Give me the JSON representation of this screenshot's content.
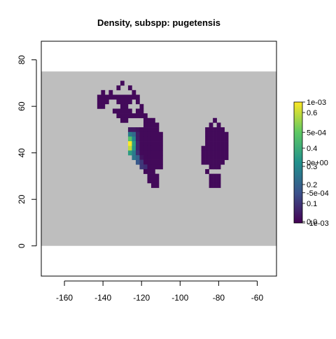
{
  "chart_data": {
    "type": "heatmap",
    "title": "Density, subspp: pugetensis",
    "xlabel": "",
    "ylabel": "",
    "xlim": [
      -172,
      -50
    ],
    "ylim": [
      -13,
      88
    ],
    "x_ticks": [
      -160,
      -140,
      -120,
      -100,
      -80,
      -60
    ],
    "x_tick_labels": [
      "-160",
      "-140",
      "-120",
      "-100",
      "-80",
      "-60"
    ],
    "y_ticks": [
      0,
      20,
      40,
      60,
      80
    ],
    "y_tick_labels": [
      "0",
      "20",
      "40",
      "60",
      "80"
    ],
    "background_extent": {
      "x": [
        -172,
        -50
      ],
      "y": [
        0,
        75
      ]
    },
    "background_color": "#bebebe",
    "cell_size_deg": 2,
    "colorscale": [
      "#440154",
      "#3b528b",
      "#21908c",
      "#5dc863",
      "#fde725"
    ],
    "colorbar_labels_a": [
      "1e-03",
      "5e-04",
      "0e+00",
      "-5e-04",
      "-1e-03"
    ],
    "colorbar_labels_b": [
      "0.6",
      "0.4",
      "0.3",
      "0.2",
      "0.1",
      "0.0"
    ],
    "cells": [
      {
        "x": -130,
        "y": 70,
        "v": 0.02
      },
      {
        "x": -132,
        "y": 68,
        "v": 0.02
      },
      {
        "x": -126,
        "y": 68,
        "v": 0.02
      },
      {
        "x": -140,
        "y": 66,
        "v": 0.02
      },
      {
        "x": -124,
        "y": 66,
        "v": 0.02
      },
      {
        "x": -136,
        "y": 66,
        "v": 0.02
      },
      {
        "x": -142,
        "y": 64,
        "v": 0.02
      },
      {
        "x": -140,
        "y": 64,
        "v": 0.02
      },
      {
        "x": -138,
        "y": 64,
        "v": 0.02
      },
      {
        "x": -136,
        "y": 64,
        "v": 0.02
      },
      {
        "x": -134,
        "y": 64,
        "v": 0.02
      },
      {
        "x": -132,
        "y": 64,
        "v": 0.02
      },
      {
        "x": -130,
        "y": 64,
        "v": 0.02
      },
      {
        "x": -128,
        "y": 64,
        "v": 0.02
      },
      {
        "x": -126,
        "y": 64,
        "v": 0.02
      },
      {
        "x": -124,
        "y": 64,
        "v": 0.02
      },
      {
        "x": -122,
        "y": 64,
        "v": 0.02
      },
      {
        "x": -142,
        "y": 62,
        "v": 0.02
      },
      {
        "x": -140,
        "y": 62,
        "v": 0.02
      },
      {
        "x": -138,
        "y": 62,
        "v": 0.02
      },
      {
        "x": -132,
        "y": 62,
        "v": 0.02
      },
      {
        "x": -130,
        "y": 62,
        "v": 0.02
      },
      {
        "x": -128,
        "y": 62,
        "v": 0.02
      },
      {
        "x": -126,
        "y": 62,
        "v": 0.02
      },
      {
        "x": -122,
        "y": 62,
        "v": 0.02
      },
      {
        "x": -142,
        "y": 60,
        "v": 0.02
      },
      {
        "x": -140,
        "y": 60,
        "v": 0.02
      },
      {
        "x": -130,
        "y": 60,
        "v": 0.02
      },
      {
        "x": -128,
        "y": 60,
        "v": 0.02
      },
      {
        "x": -120,
        "y": 60,
        "v": 0.02
      },
      {
        "x": -134,
        "y": 58,
        "v": 0.02
      },
      {
        "x": -132,
        "y": 58,
        "v": 0.02
      },
      {
        "x": -130,
        "y": 58,
        "v": 0.02
      },
      {
        "x": -128,
        "y": 58,
        "v": 0.02
      },
      {
        "x": -126,
        "y": 58,
        "v": 0.02
      },
      {
        "x": -122,
        "y": 58,
        "v": 0.02
      },
      {
        "x": -120,
        "y": 58,
        "v": 0.02
      },
      {
        "x": -132,
        "y": 56,
        "v": 0.02
      },
      {
        "x": -130,
        "y": 56,
        "v": 0.02
      },
      {
        "x": -128,
        "y": 56,
        "v": 0.02
      },
      {
        "x": -126,
        "y": 56,
        "v": 0.02
      },
      {
        "x": -124,
        "y": 56,
        "v": 0.02
      },
      {
        "x": -122,
        "y": 56,
        "v": 0.02
      },
      {
        "x": -120,
        "y": 56,
        "v": 0.02
      },
      {
        "x": -118,
        "y": 56,
        "v": 0.02
      },
      {
        "x": -130,
        "y": 54,
        "v": 0.02
      },
      {
        "x": -128,
        "y": 54,
        "v": 0.02
      },
      {
        "x": -118,
        "y": 54,
        "v": 0.02
      },
      {
        "x": -116,
        "y": 54,
        "v": 0.02
      },
      {
        "x": -114,
        "y": 54,
        "v": 0.02
      },
      {
        "x": -118,
        "y": 52,
        "v": 0.02
      },
      {
        "x": -116,
        "y": 52,
        "v": 0.02
      },
      {
        "x": -114,
        "y": 52,
        "v": 0.02
      },
      {
        "x": -112,
        "y": 52,
        "v": 0.02
      },
      {
        "x": -126,
        "y": 50,
        "v": 0.05
      },
      {
        "x": -124,
        "y": 50,
        "v": 0.05
      },
      {
        "x": -122,
        "y": 50,
        "v": 0.04
      },
      {
        "x": -120,
        "y": 50,
        "v": 0.02
      },
      {
        "x": -118,
        "y": 50,
        "v": 0.02
      },
      {
        "x": -116,
        "y": 50,
        "v": 0.02
      },
      {
        "x": -114,
        "y": 50,
        "v": 0.02
      },
      {
        "x": -112,
        "y": 50,
        "v": 0.02
      },
      {
        "x": -126,
        "y": 48,
        "v": 0.3
      },
      {
        "x": -124,
        "y": 48,
        "v": 0.25
      },
      {
        "x": -122,
        "y": 48,
        "v": 0.06
      },
      {
        "x": -120,
        "y": 48,
        "v": 0.02
      },
      {
        "x": -118,
        "y": 48,
        "v": 0.02
      },
      {
        "x": -116,
        "y": 48,
        "v": 0.02
      },
      {
        "x": -114,
        "y": 48,
        "v": 0.02
      },
      {
        "x": -112,
        "y": 48,
        "v": 0.02
      },
      {
        "x": -110,
        "y": 48,
        "v": 0.02
      },
      {
        "x": -126,
        "y": 46,
        "v": 0.52
      },
      {
        "x": -124,
        "y": 46,
        "v": 0.33
      },
      {
        "x": -122,
        "y": 46,
        "v": 0.06
      },
      {
        "x": -120,
        "y": 46,
        "v": 0.02
      },
      {
        "x": -118,
        "y": 46,
        "v": 0.02
      },
      {
        "x": -116,
        "y": 46,
        "v": 0.02
      },
      {
        "x": -114,
        "y": 46,
        "v": 0.02
      },
      {
        "x": -112,
        "y": 46,
        "v": 0.02
      },
      {
        "x": -110,
        "y": 46,
        "v": 0.02
      },
      {
        "x": -126,
        "y": 44,
        "v": 0.72
      },
      {
        "x": -124,
        "y": 44,
        "v": 0.4
      },
      {
        "x": -122,
        "y": 44,
        "v": 0.08
      },
      {
        "x": -120,
        "y": 44,
        "v": 0.02
      },
      {
        "x": -118,
        "y": 44,
        "v": 0.02
      },
      {
        "x": -116,
        "y": 44,
        "v": 0.02
      },
      {
        "x": -114,
        "y": 44,
        "v": 0.02
      },
      {
        "x": -112,
        "y": 44,
        "v": 0.02
      },
      {
        "x": -110,
        "y": 44,
        "v": 0.02
      },
      {
        "x": -126,
        "y": 42,
        "v": 0.65
      },
      {
        "x": -124,
        "y": 42,
        "v": 0.38
      },
      {
        "x": -122,
        "y": 42,
        "v": 0.08
      },
      {
        "x": -120,
        "y": 42,
        "v": 0.02
      },
      {
        "x": -118,
        "y": 42,
        "v": 0.02
      },
      {
        "x": -116,
        "y": 42,
        "v": 0.02
      },
      {
        "x": -114,
        "y": 42,
        "v": 0.02
      },
      {
        "x": -112,
        "y": 42,
        "v": 0.02
      },
      {
        "x": -110,
        "y": 42,
        "v": 0.02
      },
      {
        "x": -126,
        "y": 40,
        "v": 0.4
      },
      {
        "x": -124,
        "y": 40,
        "v": 0.3
      },
      {
        "x": -122,
        "y": 40,
        "v": 0.1
      },
      {
        "x": -120,
        "y": 40,
        "v": 0.02
      },
      {
        "x": -118,
        "y": 40,
        "v": 0.02
      },
      {
        "x": -116,
        "y": 40,
        "v": 0.02
      },
      {
        "x": -114,
        "y": 40,
        "v": 0.02
      },
      {
        "x": -112,
        "y": 40,
        "v": 0.02
      },
      {
        "x": -110,
        "y": 40,
        "v": 0.02
      },
      {
        "x": -124,
        "y": 38,
        "v": 0.28
      },
      {
        "x": -122,
        "y": 38,
        "v": 0.22
      },
      {
        "x": -120,
        "y": 38,
        "v": 0.04
      },
      {
        "x": -118,
        "y": 38,
        "v": 0.02
      },
      {
        "x": -116,
        "y": 38,
        "v": 0.02
      },
      {
        "x": -114,
        "y": 38,
        "v": 0.02
      },
      {
        "x": -112,
        "y": 38,
        "v": 0.02
      },
      {
        "x": -110,
        "y": 38,
        "v": 0.02
      },
      {
        "x": -122,
        "y": 36,
        "v": 0.2
      },
      {
        "x": -120,
        "y": 36,
        "v": 0.12
      },
      {
        "x": -118,
        "y": 36,
        "v": 0.02
      },
      {
        "x": -116,
        "y": 36,
        "v": 0.02
      },
      {
        "x": -114,
        "y": 36,
        "v": 0.02
      },
      {
        "x": -112,
        "y": 36,
        "v": 0.02
      },
      {
        "x": -110,
        "y": 36,
        "v": 0.02
      },
      {
        "x": -120,
        "y": 34,
        "v": 0.12
      },
      {
        "x": -118,
        "y": 34,
        "v": 0.1
      },
      {
        "x": -116,
        "y": 34,
        "v": 0.02
      },
      {
        "x": -114,
        "y": 34,
        "v": 0.02
      },
      {
        "x": -112,
        "y": 34,
        "v": 0.02
      },
      {
        "x": -110,
        "y": 34,
        "v": 0.02
      },
      {
        "x": -118,
        "y": 32,
        "v": 0.02
      },
      {
        "x": -116,
        "y": 32,
        "v": 0.02
      },
      {
        "x": -114,
        "y": 32,
        "v": 0.02
      },
      {
        "x": -116,
        "y": 30,
        "v": 0.02
      },
      {
        "x": -114,
        "y": 30,
        "v": 0.02
      },
      {
        "x": -112,
        "y": 30,
        "v": 0.02
      },
      {
        "x": -116,
        "y": 28,
        "v": 0.02
      },
      {
        "x": -114,
        "y": 28,
        "v": 0.02
      },
      {
        "x": -112,
        "y": 28,
        "v": 0.02
      },
      {
        "x": -114,
        "y": 26,
        "v": 0.02
      },
      {
        "x": -112,
        "y": 26,
        "v": 0.02
      },
      {
        "x": -82,
        "y": 54,
        "v": 0.02
      },
      {
        "x": -84,
        "y": 52,
        "v": 0.02
      },
      {
        "x": -80,
        "y": 52,
        "v": 0.02
      },
      {
        "x": -86,
        "y": 50,
        "v": 0.02
      },
      {
        "x": -84,
        "y": 50,
        "v": 0.02
      },
      {
        "x": -82,
        "y": 50,
        "v": 0.02
      },
      {
        "x": -80,
        "y": 50,
        "v": 0.02
      },
      {
        "x": -78,
        "y": 50,
        "v": 0.02
      },
      {
        "x": -86,
        "y": 48,
        "v": 0.02
      },
      {
        "x": -84,
        "y": 48,
        "v": 0.02
      },
      {
        "x": -82,
        "y": 48,
        "v": 0.02
      },
      {
        "x": -80,
        "y": 48,
        "v": 0.02
      },
      {
        "x": -78,
        "y": 48,
        "v": 0.02
      },
      {
        "x": -76,
        "y": 48,
        "v": 0.02
      },
      {
        "x": -86,
        "y": 46,
        "v": 0.02
      },
      {
        "x": -84,
        "y": 46,
        "v": 0.02
      },
      {
        "x": -82,
        "y": 46,
        "v": 0.02
      },
      {
        "x": -80,
        "y": 46,
        "v": 0.02
      },
      {
        "x": -78,
        "y": 46,
        "v": 0.02
      },
      {
        "x": -76,
        "y": 46,
        "v": 0.02
      },
      {
        "x": -86,
        "y": 44,
        "v": 0.02
      },
      {
        "x": -84,
        "y": 44,
        "v": 0.02
      },
      {
        "x": -82,
        "y": 44,
        "v": 0.02
      },
      {
        "x": -80,
        "y": 44,
        "v": 0.02
      },
      {
        "x": -78,
        "y": 44,
        "v": 0.02
      },
      {
        "x": -76,
        "y": 44,
        "v": 0.02
      },
      {
        "x": -88,
        "y": 42,
        "v": 0.02
      },
      {
        "x": -86,
        "y": 42,
        "v": 0.02
      },
      {
        "x": -84,
        "y": 42,
        "v": 0.02
      },
      {
        "x": -82,
        "y": 42,
        "v": 0.02
      },
      {
        "x": -80,
        "y": 42,
        "v": 0.02
      },
      {
        "x": -78,
        "y": 42,
        "v": 0.02
      },
      {
        "x": -76,
        "y": 42,
        "v": 0.02
      },
      {
        "x": -88,
        "y": 40,
        "v": 0.02
      },
      {
        "x": -86,
        "y": 40,
        "v": 0.02
      },
      {
        "x": -84,
        "y": 40,
        "v": 0.02
      },
      {
        "x": -82,
        "y": 40,
        "v": 0.02
      },
      {
        "x": -80,
        "y": 40,
        "v": 0.02
      },
      {
        "x": -78,
        "y": 40,
        "v": 0.02
      },
      {
        "x": -76,
        "y": 40,
        "v": 0.02
      },
      {
        "x": -88,
        "y": 38,
        "v": 0.02
      },
      {
        "x": -86,
        "y": 38,
        "v": 0.02
      },
      {
        "x": -84,
        "y": 38,
        "v": 0.02
      },
      {
        "x": -82,
        "y": 38,
        "v": 0.02
      },
      {
        "x": -80,
        "y": 38,
        "v": 0.02
      },
      {
        "x": -78,
        "y": 38,
        "v": 0.02
      },
      {
        "x": -76,
        "y": 38,
        "v": 0.02
      },
      {
        "x": -88,
        "y": 36,
        "v": 0.02
      },
      {
        "x": -86,
        "y": 36,
        "v": 0.02
      },
      {
        "x": -84,
        "y": 36,
        "v": 0.02
      },
      {
        "x": -82,
        "y": 36,
        "v": 0.02
      },
      {
        "x": -80,
        "y": 36,
        "v": 0.02
      },
      {
        "x": -78,
        "y": 36,
        "v": 0.02
      },
      {
        "x": -84,
        "y": 34,
        "v": 0.02
      },
      {
        "x": -82,
        "y": 34,
        "v": 0.02
      },
      {
        "x": -80,
        "y": 34,
        "v": 0.02
      },
      {
        "x": -86,
        "y": 32,
        "v": 0.02
      },
      {
        "x": -84,
        "y": 30,
        "v": 0.02
      },
      {
        "x": -82,
        "y": 30,
        "v": 0.02
      },
      {
        "x": -80,
        "y": 30,
        "v": 0.02
      },
      {
        "x": -84,
        "y": 28,
        "v": 0.02
      },
      {
        "x": -82,
        "y": 28,
        "v": 0.02
      },
      {
        "x": -80,
        "y": 28,
        "v": 0.02
      },
      {
        "x": -84,
        "y": 26,
        "v": 0.02
      },
      {
        "x": -82,
        "y": 26,
        "v": 0.02
      },
      {
        "x": -80,
        "y": 26,
        "v": 0.02
      }
    ]
  }
}
